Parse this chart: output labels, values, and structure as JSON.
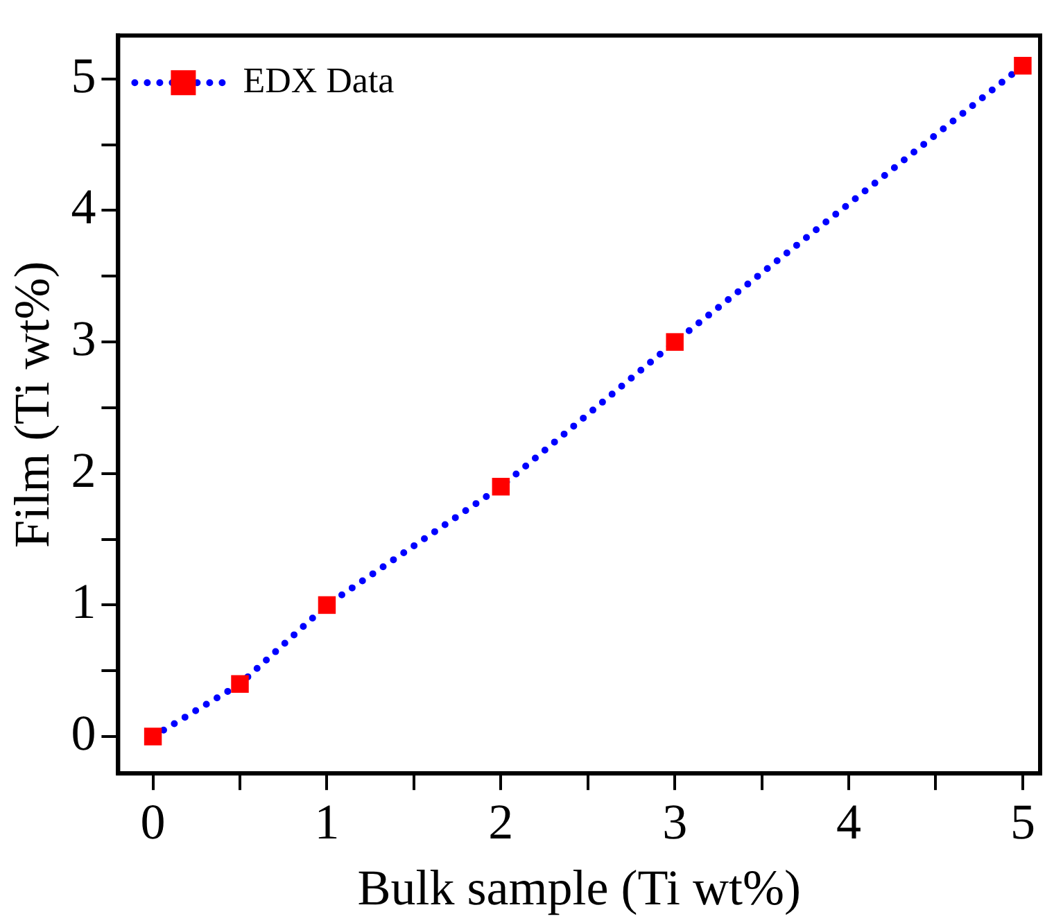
{
  "chart_data": {
    "type": "line",
    "xlabel": "Bulk sample (Ti wt%)",
    "ylabel": "Film (Ti wt%)",
    "x": [
      0,
      0.5,
      1,
      2,
      3,
      5
    ],
    "series": [
      {
        "name": "EDX Data",
        "color": "#0000ff",
        "colors": [
          "#ff0000",
          "#ff0000",
          "#ff0000",
          "#ff0000",
          "#ff0000",
          "#ff0000"
        ],
        "values": [
          0,
          0.4,
          1,
          1.9,
          3,
          5.1
        ]
      }
    ],
    "xlim": [
      -0.2,
      5.1
    ],
    "ylim": [
      -0.28,
      5.33
    ],
    "xticks": [
      0,
      {
        "value": 0.5,
        "label": null
      },
      1,
      {
        "value": 1.5,
        "label": null
      },
      2,
      {
        "value": 2.5,
        "label": null
      },
      3,
      {
        "value": 3.5,
        "label": null
      },
      4,
      {
        "value": 4.5,
        "label": null
      },
      5
    ],
    "yticks": [
      0,
      {
        "value": 0.5,
        "label": null
      },
      1,
      {
        "value": 1.5,
        "label": null
      },
      2,
      {
        "value": 2.5,
        "label": null
      },
      3,
      {
        "value": 3.5,
        "label": null
      },
      4,
      {
        "value": 4.5,
        "label": null
      },
      5
    ],
    "marker": "square",
    "line_style": "dotted",
    "legend": "top left",
    "grid": false
  }
}
